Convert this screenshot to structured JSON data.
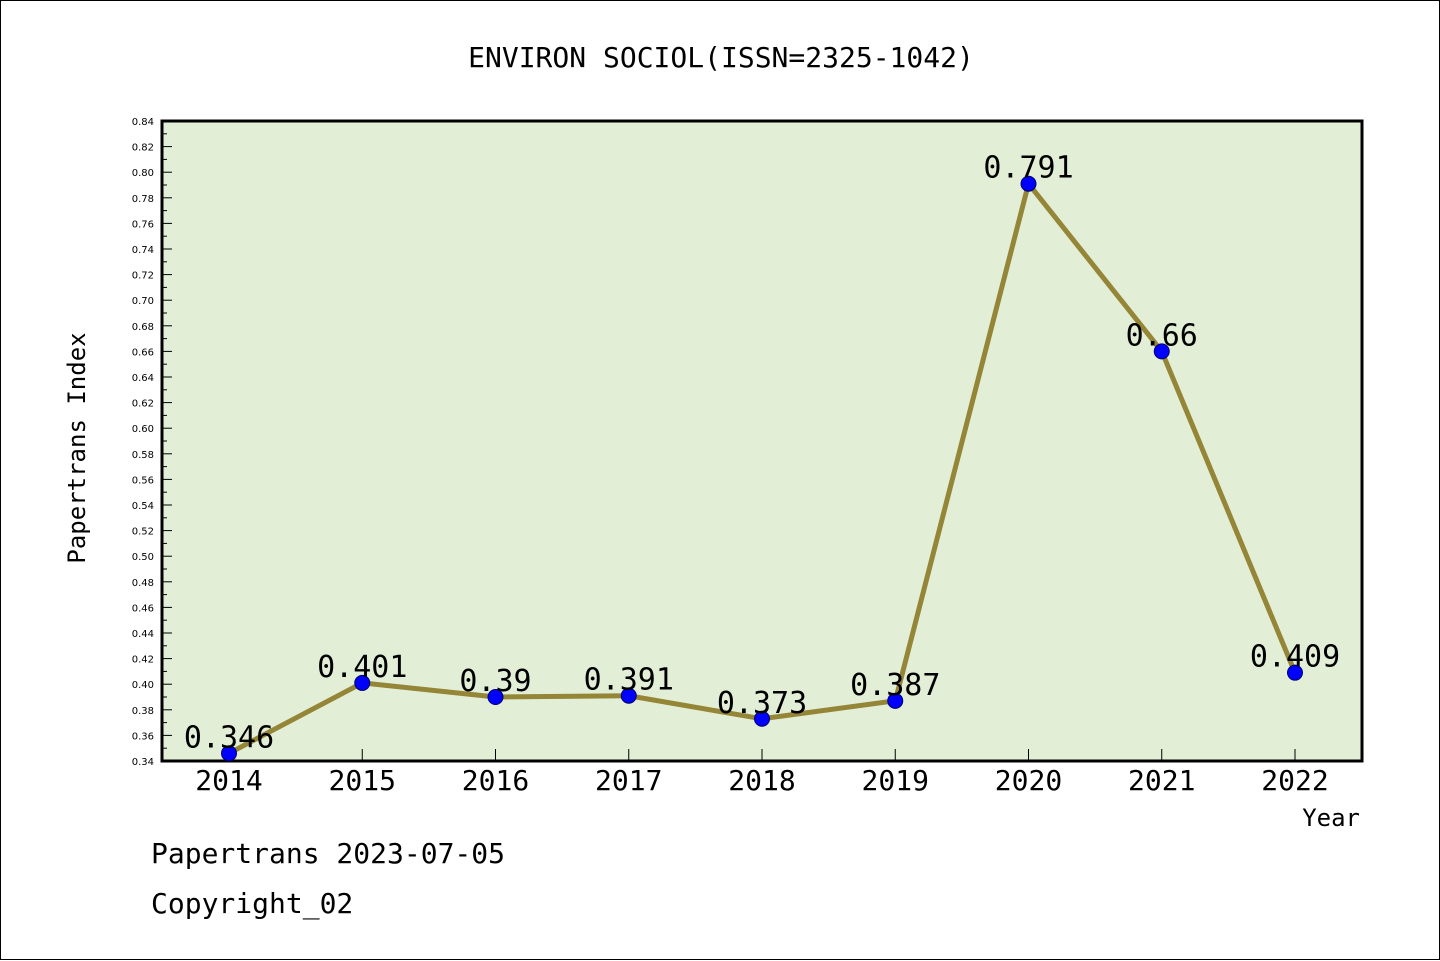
{
  "chart_data": {
    "type": "line",
    "title": "ENVIRON SOCIOL(ISSN=2325-1042)",
    "xlabel": "Year",
    "ylabel": "Papertrans Index",
    "categories": [
      "2014",
      "2015",
      "2016",
      "2017",
      "2018",
      "2019",
      "2020",
      "2021",
      "2022"
    ],
    "series": [
      {
        "values": [
          0.346,
          0.401,
          0.39,
          0.391,
          0.373,
          0.387,
          0.791,
          0.66,
          0.409
        ],
        "data_labels": [
          "0.346",
          "0.401",
          "0.39",
          "0.391",
          "0.373",
          "0.387",
          "0.791",
          "0.66",
          "0.409"
        ]
      }
    ],
    "ylim": [
      0.34,
      0.84
    ],
    "yticks": [
      "0.34",
      "0.36",
      "0.38",
      "0.40",
      "0.42",
      "0.44",
      "0.46",
      "0.48",
      "0.50",
      "0.52",
      "0.54",
      "0.56",
      "0.58",
      "0.60",
      "0.62",
      "0.64",
      "0.66",
      "0.68",
      "0.70",
      "0.72",
      "0.74",
      "0.76",
      "0.78",
      "0.80",
      "0.82",
      "0.84"
    ],
    "grid": false,
    "colors": {
      "plot_background": "#e2efd6",
      "line": "#948537",
      "marker": "#0000ff",
      "marker_outline": "#000066",
      "axis": "#000000"
    }
  },
  "footer": {
    "date_line": "Papertrans 2023-07-05",
    "copyright": "Copyright_02"
  }
}
